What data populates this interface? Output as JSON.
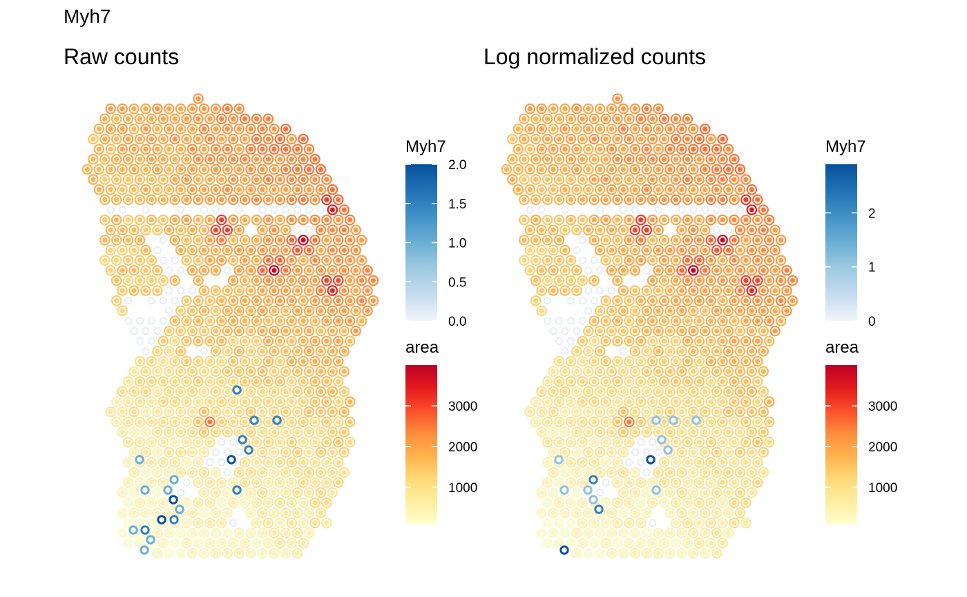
{
  "figure": {
    "title": "Myh7"
  },
  "panels": [
    {
      "title": "Raw counts"
    },
    {
      "title": "Log normalized counts"
    }
  ],
  "colors": {
    "area_scale": [
      "#ffffcc",
      "#ffeda0",
      "#fed976",
      "#feb24c",
      "#fd8d3c",
      "#fc4e2a",
      "#e31a1c",
      "#bd0026"
    ],
    "myh7_scale": [
      "#f1f6fc",
      "#c6dbef",
      "#9ecae1",
      "#6baed6",
      "#4292c6",
      "#2171b5",
      "#08519c"
    ]
  },
  "chart_data": [
    {
      "type": "scatter",
      "title": "Raw counts",
      "fill_variable": "area",
      "outline_variable": "Myh7",
      "legends": [
        {
          "title": "Myh7",
          "range": [
            0,
            2
          ],
          "ticks": [
            0.0,
            0.5,
            1.0,
            1.5,
            2.0
          ],
          "tick_labels": [
            "0.0",
            "0.5",
            "1.0",
            "1.5",
            "2.0"
          ],
          "palette": "Blues"
        },
        {
          "title": "area",
          "range": [
            100,
            4000
          ],
          "ticks": [
            1000,
            2000,
            3000
          ],
          "tick_labels": [
            "1000",
            "2000",
            "3000"
          ],
          "palette": "YlOrRd"
        }
      ],
      "expressing_spots": [
        {
          "value": 1.0,
          "n": 8
        },
        {
          "value": 1.5,
          "n": 4
        },
        {
          "value": 2.0,
          "n": 3
        }
      ],
      "grid": false
    },
    {
      "type": "scatter",
      "title": "Log normalized counts",
      "fill_variable": "area",
      "outline_variable": "Myh7",
      "legends": [
        {
          "title": "Myh7",
          "range": [
            0,
            2.9
          ],
          "ticks": [
            0,
            1,
            2
          ],
          "tick_labels": [
            "0",
            "1",
            "2"
          ],
          "palette": "Blues"
        },
        {
          "title": "area",
          "range": [
            100,
            4000
          ],
          "ticks": [
            1000,
            2000,
            3000
          ],
          "tick_labels": [
            "1000",
            "2000",
            "3000"
          ],
          "palette": "YlOrRd"
        }
      ],
      "expressing_spots": [
        {
          "value": 1.1,
          "n": 10
        },
        {
          "value": 2.2,
          "n": 2
        },
        {
          "value": 2.9,
          "n": 2
        }
      ],
      "grid": false
    }
  ]
}
